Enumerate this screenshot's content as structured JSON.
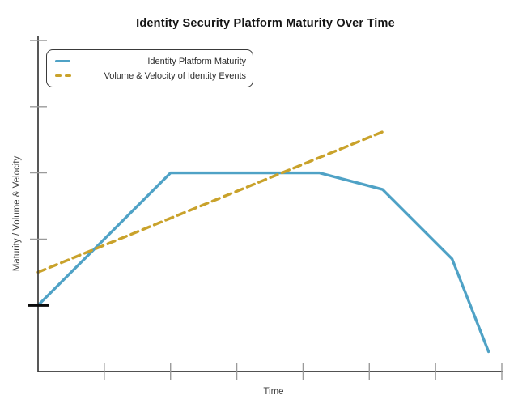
{
  "chart_data": {
    "type": "line",
    "title": "Identity Security Platform Maturity Over Time",
    "xlabel": "Time",
    "ylabel": "Maturity / Volume & Velocity",
    "xlim": [
      0,
      7
    ],
    "ylim": [
      0,
      5
    ],
    "xticks": [
      1,
      2,
      3,
      4,
      5,
      6,
      7
    ],
    "yticks": [
      1,
      2,
      3,
      4,
      5
    ],
    "emphasized_ytick": 1,
    "tick_labels_shown": false,
    "grid": false,
    "legend_position": "upper left inside",
    "axis_color": "#3a3a3a",
    "tick_color": "#9a9a9a",
    "emphasized_tick_color": "#0b0b0b",
    "series": [
      {
        "name": "Identity Platform Maturity",
        "style": "solid",
        "color": "#4FA2C6",
        "points": [
          [
            0,
            1
          ],
          [
            2,
            3
          ],
          [
            4.25,
            3
          ],
          [
            5.2,
            2.75
          ],
          [
            6.25,
            1.7
          ],
          [
            6.8,
            0.3
          ]
        ]
      },
      {
        "name": "Volume & Velocity of Identity Events",
        "style": "dashed",
        "color": "#C9A22B",
        "points": [
          [
            0,
            1.5
          ],
          [
            5.2,
            3.62
          ]
        ]
      }
    ]
  }
}
